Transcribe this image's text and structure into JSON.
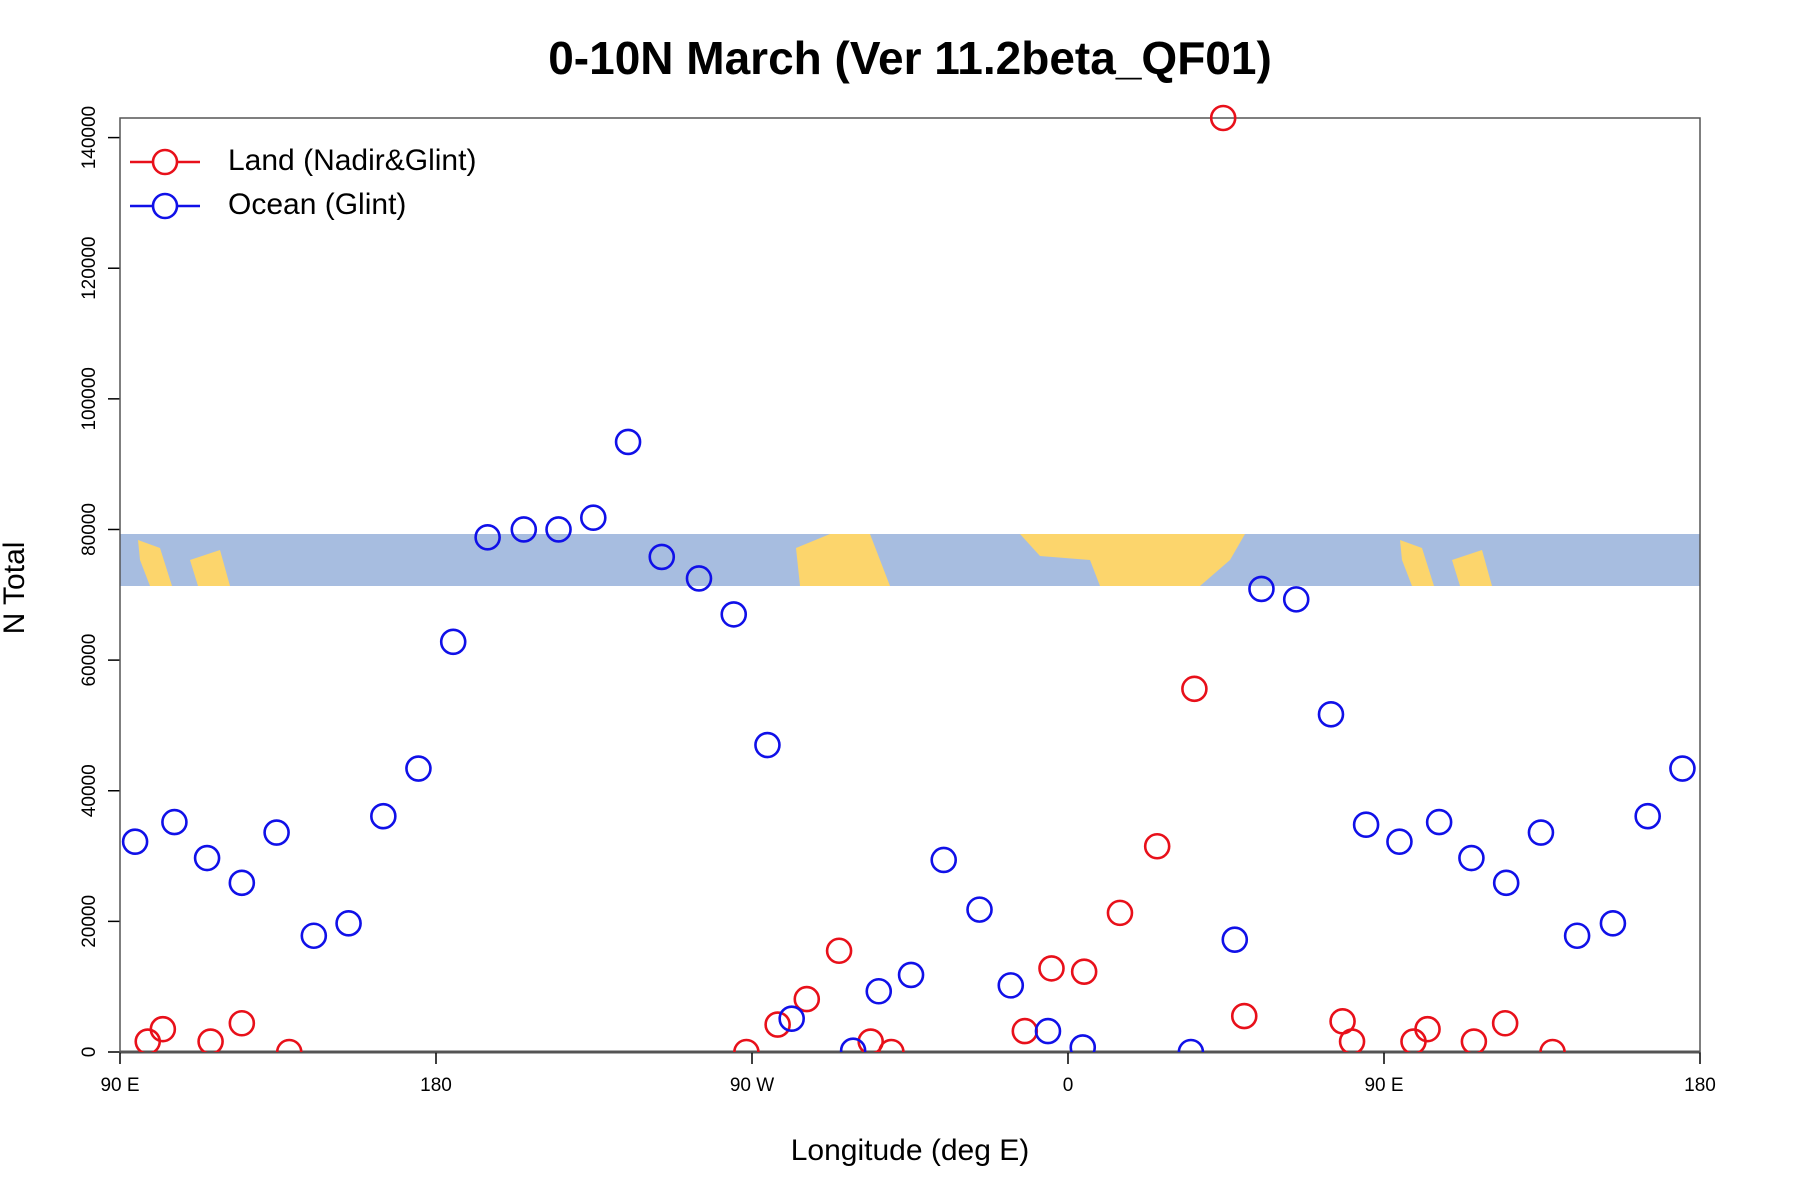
{
  "chart_data": {
    "type": "scatter",
    "title": "0-10N March (Ver 11.2beta_QF01)",
    "x_label": "Longitude (deg E)",
    "y_label": "N Total",
    "xlim": [
      90,
      540
    ],
    "ylim": [
      0,
      143000
    ],
    "xticks": [
      {
        "value": 90,
        "label": "90 E"
      },
      {
        "value": 180,
        "label": "180"
      },
      {
        "value": 270,
        "label": "90 W"
      },
      {
        "value": 360,
        "label": "0"
      },
      {
        "value": 450,
        "label": "90 E"
      },
      {
        "value": 540,
        "label": "180"
      }
    ],
    "yticks": [
      0,
      20000,
      40000,
      60000,
      80000,
      100000,
      120000,
      140000
    ],
    "legend": "top-left",
    "series": [
      {
        "name": "Land (Nadir&Glint)",
        "color": "#e8101a",
        "x": [
          97.9,
          102.2,
          115.8,
          124.7,
          138.2,
          268.4,
          277.3,
          285.6,
          294.8,
          303.8,
          309.7,
          347.7,
          355.3,
          364.6,
          374.8,
          385.4,
          396.0,
          404.2,
          410.2,
          438.2,
          440.9,
          458.4,
          462.4,
          475.6,
          484.5,
          498.0
        ],
        "values": [
          1600,
          3500,
          1600,
          4400,
          0,
          0,
          4200,
          8100,
          15500,
          1600,
          0,
          3200,
          12800,
          12300,
          21300,
          31500,
          55600,
          143000,
          5500,
          4700,
          1600,
          1600,
          3500,
          1600,
          4400,
          0
        ]
      },
      {
        "name": "Ocean (Glint)",
        "color": "#1010e8",
        "x": [
          94.3,
          105.5,
          114.8,
          124.7,
          134.6,
          145.2,
          155.1,
          165.0,
          175.0,
          184.9,
          194.7,
          205.0,
          214.9,
          224.8,
          234.7,
          244.3,
          254.9,
          264.8,
          274.4,
          281.3,
          298.8,
          306.1,
          315.3,
          324.6,
          334.8,
          343.7,
          354.3,
          364.2,
          395.0,
          407.5,
          415.1,
          425.0,
          434.9,
          444.9,
          454.4,
          465.7,
          474.9,
          484.8,
          494.7,
          505.0,
          515.2,
          525.1,
          535.0
        ],
        "values": [
          32200,
          35200,
          29700,
          25900,
          33600,
          17800,
          19700,
          36100,
          43400,
          62800,
          78800,
          80000,
          80000,
          81800,
          93400,
          75800,
          72500,
          67000,
          47000,
          5100,
          200,
          9300,
          11800,
          29400,
          21800,
          10200,
          3200,
          700,
          0,
          17200,
          70900,
          69300,
          51700,
          34800,
          32200,
          35200,
          29700,
          25900,
          33600,
          17800,
          19700,
          36100,
          43400
        ]
      }
    ]
  }
}
